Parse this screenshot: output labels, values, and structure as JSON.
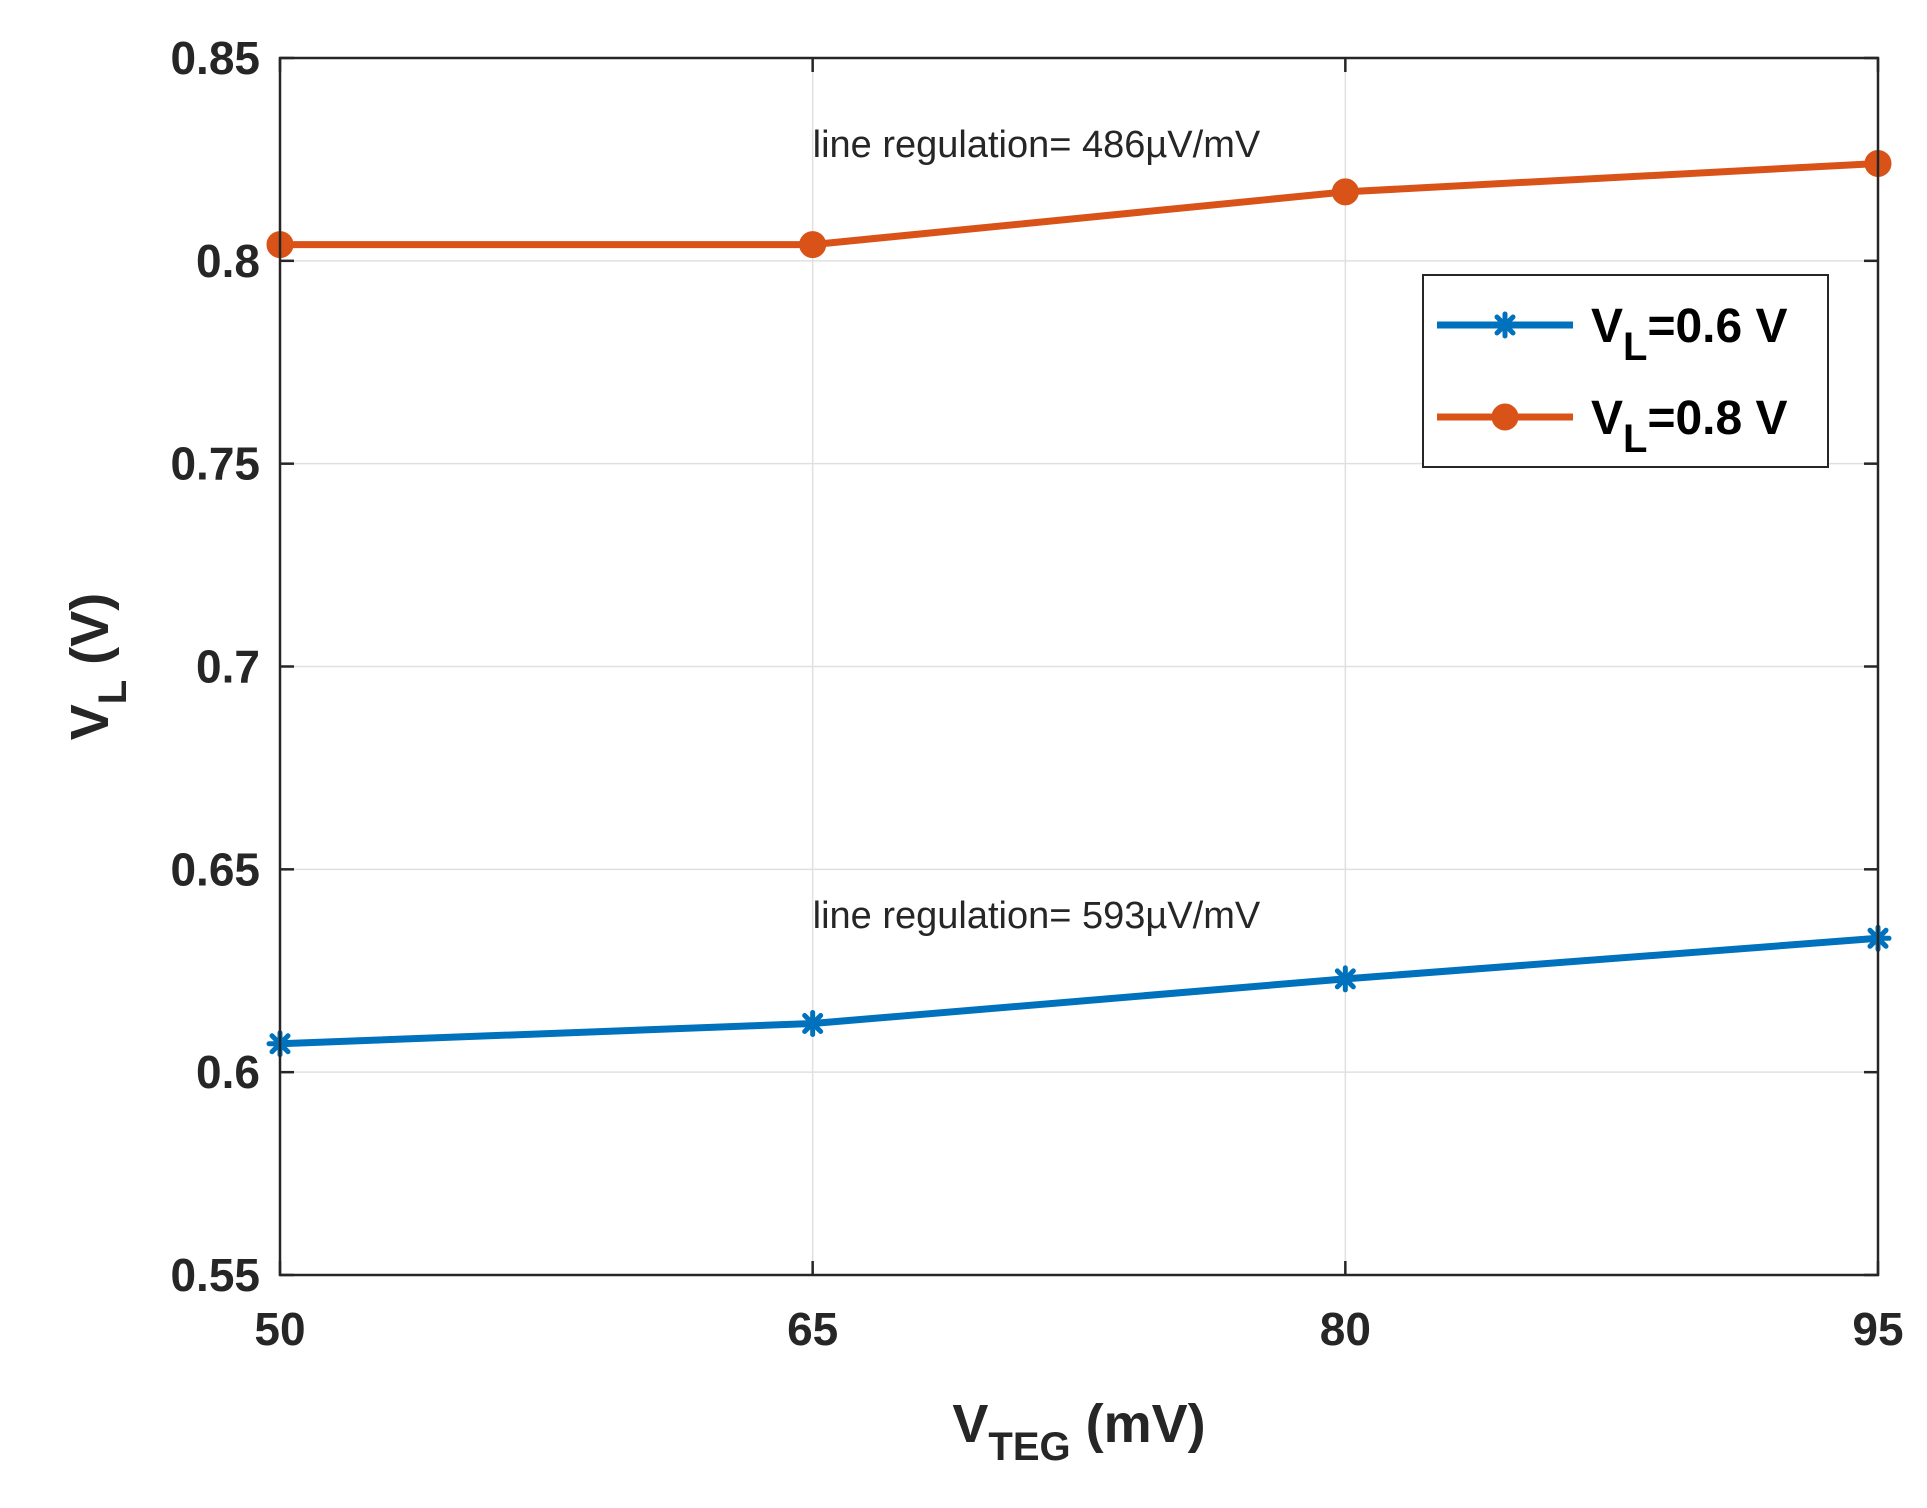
{
  "chart_data": {
    "type": "line",
    "title": "",
    "xlabel": {
      "main": "V",
      "sub": "TEG",
      "tail": " (mV)"
    },
    "ylabel": {
      "main": "V",
      "sub": "L",
      "tail": " (V)"
    },
    "x": [
      50,
      65,
      80,
      95
    ],
    "xlim": [
      50,
      95
    ],
    "ylim": [
      0.55,
      0.85
    ],
    "xticks": [
      "50",
      "65",
      "80",
      "95"
    ],
    "yticks": [
      "0.55",
      "0.6",
      "0.65",
      "0.7",
      "0.75",
      "0.8",
      "0.85"
    ],
    "grid": true,
    "legend_position": "upper-right",
    "series": [
      {
        "name": "VL=0.6 V",
        "legend": {
          "main": "V",
          "sub": "L",
          "tail": "=0.6 V"
        },
        "values": [
          0.607,
          0.612,
          0.623,
          0.633
        ],
        "color": "#0072BD",
        "marker": "star"
      },
      {
        "name": "VL=0.8 V",
        "legend": {
          "main": "V",
          "sub": "L",
          "tail": "=0.8 V"
        },
        "values": [
          0.804,
          0.804,
          0.817,
          0.824
        ],
        "color": "#D95319",
        "marker": "circle"
      }
    ],
    "annotations": [
      {
        "text": "line regulation= 486µV/mV",
        "x": 65,
        "y": 0.829
      },
      {
        "text": "line regulation= 593µV/mV",
        "x": 65,
        "y": 0.639
      }
    ]
  }
}
